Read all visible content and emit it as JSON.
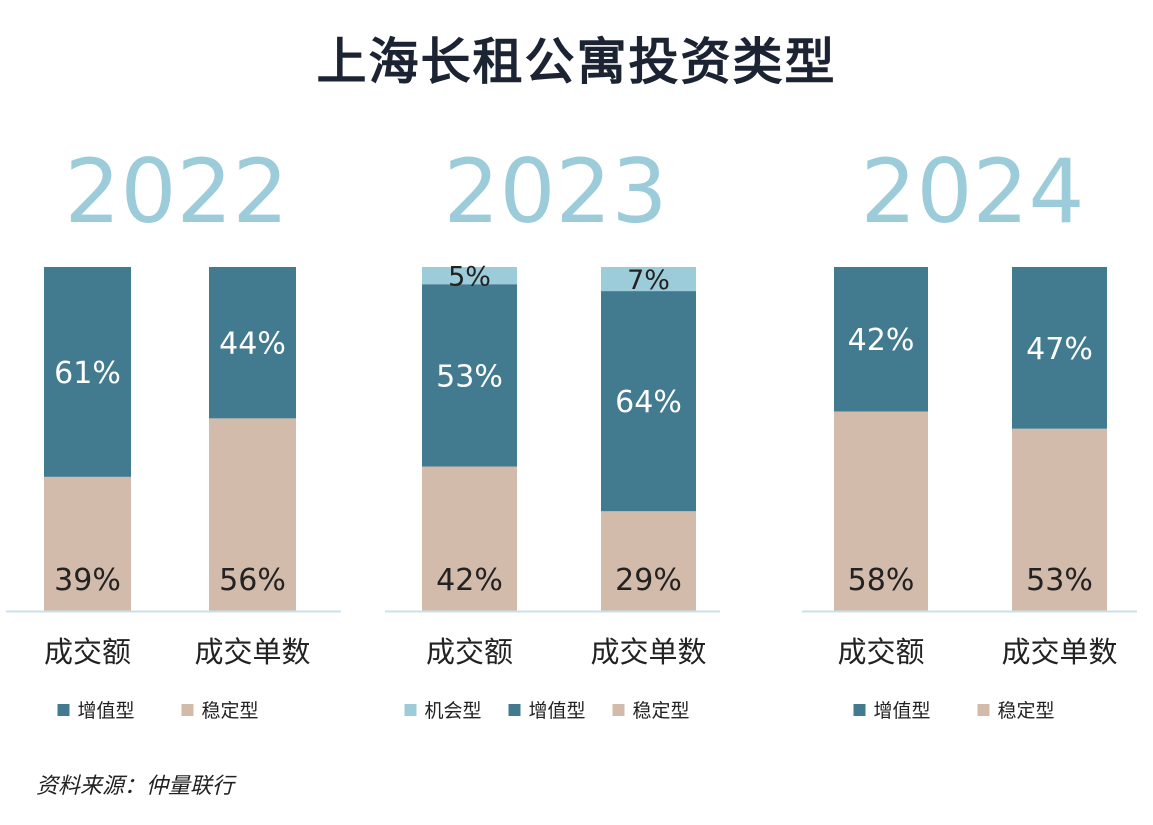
{
  "page": {
    "title": "上海长租公寓投资类型",
    "source": "资料来源：仲量联行"
  },
  "colors": {
    "opportunistic": "#9ccbd9",
    "value_add": "#427b8f",
    "core": "#d2bbab",
    "year": "#9ccbd9",
    "axis": "#c9e0e8"
  },
  "chart_data": [
    {
      "type": "bar",
      "stacked": true,
      "title": "2022",
      "categories": [
        "成交额",
        "成交单数"
      ],
      "series": [
        {
          "name": "稳定型",
          "color": "#d2bbab",
          "values": [
            39,
            56
          ]
        },
        {
          "name": "增值型",
          "color": "#427b8f",
          "values": [
            61,
            44
          ]
        }
      ],
      "legend": [
        "增值型",
        "稳定型"
      ],
      "ylim": [
        0,
        100
      ]
    },
    {
      "type": "bar",
      "stacked": true,
      "title": "2023",
      "categories": [
        "成交额",
        "成交单数"
      ],
      "series": [
        {
          "name": "稳定型",
          "color": "#d2bbab",
          "values": [
            42,
            29
          ]
        },
        {
          "name": "增值型",
          "color": "#427b8f",
          "values": [
            53,
            64
          ]
        },
        {
          "name": "机会型",
          "color": "#9ccbd9",
          "values": [
            5,
            7
          ]
        }
      ],
      "legend": [
        "机会型",
        "增值型",
        "稳定型"
      ],
      "ylim": [
        0,
        100
      ]
    },
    {
      "type": "bar",
      "stacked": true,
      "title": "2024",
      "categories": [
        "成交额",
        "成交单数"
      ],
      "series": [
        {
          "name": "稳定型",
          "color": "#d2bbab",
          "values": [
            58,
            53
          ]
        },
        {
          "name": "增值型",
          "color": "#427b8f",
          "values": [
            42,
            47
          ]
        }
      ],
      "legend": [
        "增值型",
        "稳定型"
      ],
      "ylim": [
        0,
        100
      ]
    }
  ]
}
